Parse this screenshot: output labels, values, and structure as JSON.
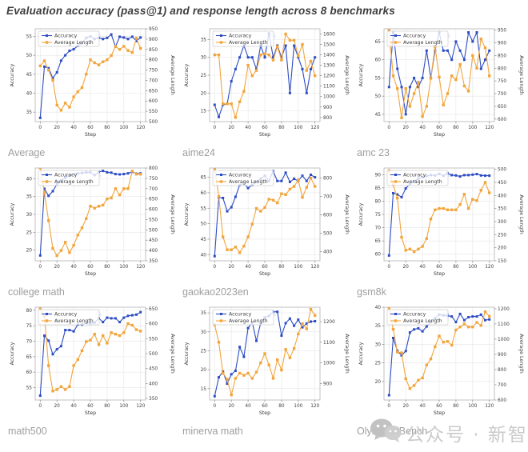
{
  "title": "Evaluation accuracy (pass@1) and response length across 8 benchmarks",
  "colors": {
    "accuracy": "#2d4cc4",
    "avg_length": "#f2a53c",
    "grid": "#e6e6e6",
    "spine": "#b3b3b3",
    "caption": "#9e9e9e",
    "watermark": "#c8c8c8"
  },
  "watermark": {
    "icon": "wechat-icon",
    "text": "公众号 · 新智元"
  },
  "chart_data": [
    {
      "type": "line",
      "name": "average",
      "caption": "Average",
      "xlabel": "Step",
      "ylabel_left": "Accuracy",
      "ylabel_right": "Average Length",
      "x_ticks": [
        0,
        20,
        40,
        60,
        80,
        100,
        120
      ],
      "x_range": [
        -6,
        126
      ],
      "yl_ticks": [
        35,
        40,
        45,
        50,
        55
      ],
      "yl_range": [
        32.5,
        57
      ],
      "yr_ticks": [
        500,
        550,
        600,
        650,
        700,
        750,
        800,
        850,
        900,
        950
      ],
      "yr_range": [
        500,
        950
      ],
      "x": [
        0,
        5,
        10,
        15,
        20,
        25,
        30,
        35,
        40,
        45,
        50,
        55,
        60,
        65,
        70,
        75,
        80,
        85,
        90,
        95,
        100,
        105,
        110,
        115,
        120
      ],
      "series": [
        {
          "name": "Accuracy",
          "axis": "left",
          "values": [
            33.5,
            47,
            46.6,
            44,
            45.5,
            48.6,
            50,
            51.2,
            51.6,
            52.5,
            53.2,
            54.6,
            55,
            54.3,
            54.6,
            54.3,
            54.6,
            55.5,
            52.3,
            54.9,
            54.7,
            54.3,
            54.9,
            53.8,
            54.7
          ]
        },
        {
          "name": "Average Length",
          "axis": "right",
          "values": [
            770,
            795,
            750,
            700,
            580,
            555,
            590,
            570,
            620,
            645,
            665,
            730,
            800,
            785,
            775,
            790,
            800,
            820,
            865,
            850,
            865,
            845,
            835,
            905,
            855
          ]
        }
      ]
    },
    {
      "type": "line",
      "name": "aime24",
      "caption": "aime24",
      "xlabel": "Step",
      "ylabel_left": "Accuracy",
      "ylabel_right": "Average Length",
      "x_ticks": [
        0,
        20,
        40,
        60,
        80,
        100,
        120
      ],
      "x_range": [
        -6,
        126
      ],
      "yl_ticks": [
        15,
        20,
        25,
        30,
        35
      ],
      "yl_range": [
        12,
        38
      ],
      "yr_ticks": [
        800,
        900,
        1000,
        1100,
        1200,
        1300,
        1400,
        1500,
        1600
      ],
      "yr_range": [
        760,
        1650
      ],
      "x": [
        0,
        5,
        10,
        15,
        20,
        25,
        30,
        35,
        40,
        45,
        50,
        55,
        60,
        65,
        70,
        75,
        80,
        85,
        90,
        95,
        100,
        105,
        110,
        115,
        120
      ],
      "series": [
        {
          "name": "Accuracy",
          "axis": "left",
          "values": [
            16.7,
            13.3,
            16.7,
            17,
            23.3,
            26.7,
            30,
            33.3,
            30,
            30,
            26.7,
            33.3,
            30,
            36.7,
            30,
            33.3,
            30,
            33.3,
            20,
            33.3,
            30,
            26.7,
            20,
            26.7,
            30
          ]
        },
        {
          "name": "Average Length",
          "axis": "right",
          "values": [
            1400,
            1400,
            930,
            930,
            930,
            800,
            950,
            1050,
            1300,
            1200,
            1250,
            1400,
            1410,
            1400,
            1350,
            1480,
            1350,
            1600,
            1540,
            1540,
            1390,
            1500,
            1250,
            1340,
            1200
          ]
        }
      ]
    },
    {
      "type": "line",
      "name": "amc23",
      "caption": "amc 23",
      "xlabel": "Step",
      "ylabel_left": "Accuracy",
      "ylabel_right": "Average Length",
      "x_ticks": [
        0,
        20,
        40,
        60,
        80,
        100,
        120
      ],
      "x_range": [
        -6,
        126
      ],
      "yl_ticks": [
        45,
        50,
        55,
        60,
        65
      ],
      "yl_range": [
        43,
        68.5
      ],
      "yr_ticks": [
        600,
        650,
        700,
        750,
        800,
        850,
        900,
        950
      ],
      "yr_range": [
        590,
        955
      ],
      "x": [
        0,
        5,
        10,
        15,
        20,
        25,
        30,
        35,
        40,
        45,
        50,
        55,
        60,
        65,
        70,
        75,
        80,
        85,
        90,
        95,
        100,
        105,
        110,
        115,
        120
      ],
      "series": [
        {
          "name": "Accuracy",
          "axis": "left",
          "values": [
            52.5,
            67.5,
            57.5,
            52.5,
            45,
            52.5,
            55,
            52.5,
            55,
            62.5,
            55,
            62.5,
            67.5,
            62.5,
            62.5,
            60,
            65,
            62.5,
            60,
            67.5,
            65,
            67.5,
            57.5,
            60,
            62.5
          ]
        },
        {
          "name": "Average Length",
          "axis": "right",
          "values": [
            950,
            770,
            720,
            605,
            720,
            650,
            700,
            745,
            610,
            650,
            760,
            885,
            765,
            655,
            700,
            770,
            755,
            815,
            730,
            710,
            850,
            800,
            915,
            880,
            770
          ]
        }
      ]
    },
    {
      "type": "line",
      "name": "college-math",
      "caption": "college math",
      "xlabel": "Step",
      "ylabel_left": "Accuracy",
      "ylabel_right": "Average Length",
      "x_ticks": [
        0,
        20,
        40,
        60,
        80,
        100,
        120
      ],
      "x_range": [
        -6,
        126
      ],
      "yl_ticks": [
        20,
        25,
        30,
        35,
        40
      ],
      "yl_range": [
        17,
        43
      ],
      "yr_ticks": [
        350,
        400,
        450,
        500,
        550,
        600,
        650,
        700,
        750,
        800
      ],
      "yr_range": [
        350,
        800
      ],
      "x": [
        0,
        5,
        10,
        15,
        20,
        25,
        30,
        35,
        40,
        45,
        50,
        55,
        60,
        65,
        70,
        75,
        80,
        85,
        90,
        95,
        100,
        105,
        110,
        115,
        120
      ],
      "series": [
        {
          "name": "Accuracy",
          "axis": "left",
          "values": [
            18.5,
            37.2,
            35.2,
            36.5,
            38.5,
            39.5,
            40.3,
            40.8,
            41.2,
            41.5,
            41.6,
            41.8,
            41.8,
            41,
            41.9,
            42.2,
            41.8,
            41.7,
            41.3,
            41.2,
            41.3,
            41.5,
            41.9,
            41.4,
            41.5
          ]
        },
        {
          "name": "Average Length",
          "axis": "right",
          "values": [
            800,
            680,
            545,
            410,
            375,
            400,
            440,
            390,
            425,
            475,
            510,
            555,
            615,
            605,
            615,
            620,
            650,
            655,
            700,
            670,
            700,
            700,
            785,
            770,
            770
          ]
        }
      ]
    },
    {
      "type": "line",
      "name": "gaokao2023en",
      "caption": "gaokao2023en",
      "xlabel": "Step",
      "ylabel_left": "Accuracy",
      "ylabel_right": "Average Length",
      "x_ticks": [
        0,
        20,
        40,
        60,
        80,
        100,
        120
      ],
      "x_range": [
        -6,
        126
      ],
      "yl_ticks": [
        40,
        45,
        50,
        55,
        60,
        65
      ],
      "yl_range": [
        38,
        68
      ],
      "yr_ticks": [
        400,
        500,
        600,
        700,
        800
      ],
      "yr_range": [
        350,
        855
      ],
      "x": [
        0,
        5,
        10,
        15,
        20,
        25,
        30,
        35,
        40,
        45,
        50,
        55,
        60,
        65,
        70,
        75,
        80,
        85,
        90,
        95,
        100,
        105,
        110,
        115,
        120
      ],
      "series": [
        {
          "name": "Accuracy",
          "axis": "left",
          "values": [
            39.5,
            58.5,
            58.3,
            54,
            55.3,
            58.7,
            62.5,
            63,
            61.5,
            62.5,
            63.5,
            64.5,
            65.5,
            63.8,
            67,
            63.8,
            63.8,
            66.5,
            63.5,
            64.5,
            63.8,
            65.5,
            63.8,
            65.8,
            65
          ]
        },
        {
          "name": "Average Length",
          "axis": "right",
          "values": [
            850,
            700,
            480,
            410,
            410,
            425,
            395,
            430,
            480,
            550,
            635,
            620,
            640,
            685,
            680,
            665,
            715,
            710,
            740,
            755,
            790,
            695,
            750,
            800,
            755
          ]
        }
      ]
    },
    {
      "type": "line",
      "name": "gsm8k",
      "caption": "gsm8k",
      "xlabel": "Step",
      "ylabel_left": "Accuracy",
      "ylabel_right": "Average Length",
      "x_ticks": [
        0,
        20,
        40,
        60,
        80,
        100,
        120
      ],
      "x_range": [
        -6,
        126
      ],
      "yl_ticks": [
        60,
        65,
        70,
        75,
        80,
        85,
        90
      ],
      "yl_range": [
        57.5,
        92.5
      ],
      "yr_ticks": [
        150,
        200,
        250,
        300,
        350,
        400,
        450,
        500
      ],
      "yr_range": [
        150,
        505
      ],
      "x": [
        0,
        5,
        10,
        15,
        20,
        25,
        30,
        35,
        40,
        45,
        50,
        55,
        60,
        65,
        70,
        75,
        80,
        85,
        90,
        95,
        100,
        105,
        110,
        115,
        120
      ],
      "series": [
        {
          "name": "Accuracy",
          "axis": "left",
          "values": [
            59.5,
            83,
            82.5,
            81.5,
            84.8,
            86.5,
            87.5,
            88.5,
            89,
            89.5,
            89.8,
            89.7,
            90.3,
            89.5,
            90.5,
            89.8,
            89.7,
            89.3,
            89.8,
            89.8,
            90,
            90.2,
            89.7,
            89.6,
            89.6
          ]
        },
        {
          "name": "Average Length",
          "axis": "right",
          "values": [
            495,
            440,
            390,
            240,
            190,
            195,
            185,
            195,
            205,
            235,
            310,
            345,
            350,
            350,
            345,
            345,
            345,
            365,
            405,
            350,
            385,
            380,
            420,
            450,
            410
          ]
        }
      ]
    },
    {
      "type": "line",
      "name": "math500",
      "caption": "math500",
      "xlabel": "Step",
      "ylabel_left": "Accuracy",
      "ylabel_right": "Average Length",
      "x_ticks": [
        0,
        20,
        40,
        60,
        80,
        100,
        120
      ],
      "x_range": [
        -6,
        126
      ],
      "yl_ticks": [
        55,
        60,
        65,
        70,
        75,
        80
      ],
      "yl_range": [
        51,
        81
      ],
      "yr_ticks": [
        350,
        400,
        450,
        500,
        550,
        600,
        650
      ],
      "yr_range": [
        345,
        655
      ],
      "x": [
        0,
        5,
        10,
        15,
        20,
        25,
        30,
        35,
        40,
        45,
        50,
        55,
        60,
        65,
        70,
        75,
        80,
        85,
        90,
        95,
        100,
        105,
        110,
        115,
        120
      ],
      "series": [
        {
          "name": "Accuracy",
          "axis": "left",
          "values": [
            52.4,
            71.8,
            70.2,
            65.8,
            67.4,
            68.4,
            73.6,
            73.6,
            73.2,
            75.4,
            75.4,
            76,
            75.8,
            76,
            77.4,
            76.2,
            77.6,
            77.4,
            77.4,
            76.2,
            77.6,
            78.2,
            78.4,
            78.6,
            79.4
          ]
        },
        {
          "name": "Average Length",
          "axis": "right",
          "values": [
            650,
            625,
            460,
            375,
            380,
            390,
            380,
            390,
            460,
            480,
            510,
            540,
            545,
            565,
            530,
            560,
            535,
            570,
            565,
            560,
            570,
            600,
            595,
            580,
            575
          ]
        }
      ]
    },
    {
      "type": "line",
      "name": "minerva-math",
      "caption": "minerva math",
      "xlabel": "Step",
      "ylabel_left": "Accuracy",
      "ylabel_right": "Average Length",
      "x_ticks": [
        0,
        20,
        40,
        60,
        80,
        100,
        120
      ],
      "x_range": [
        -6,
        126
      ],
      "yl_ticks": [
        15,
        20,
        25,
        30,
        35
      ],
      "yl_range": [
        12,
        36.5
      ],
      "yr_ticks": [
        900,
        1000,
        1100,
        1200
      ],
      "yr_range": [
        820,
        1270
      ],
      "x": [
        0,
        5,
        10,
        15,
        20,
        25,
        30,
        35,
        40,
        45,
        50,
        55,
        60,
        65,
        70,
        75,
        80,
        85,
        90,
        95,
        100,
        105,
        110,
        115,
        120
      ],
      "series": [
        {
          "name": "Accuracy",
          "axis": "left",
          "values": [
            13,
            18,
            19.5,
            16.3,
            18.8,
            19.7,
            26,
            23.4,
            31,
            32.5,
            27.6,
            32.3,
            33.8,
            34.2,
            35.3,
            35.3,
            29,
            32.3,
            33.5,
            31.6,
            33.2,
            31.2,
            32.2,
            32.7,
            32.8
          ]
        },
        {
          "name": "Average Length",
          "axis": "right",
          "values": [
            1185,
            1100,
            950,
            920,
            845,
            925,
            950,
            940,
            950,
            925,
            955,
            1000,
            1045,
            990,
            925,
            1015,
            965,
            1065,
            1025,
            1070,
            1140,
            1190,
            1165,
            1260,
            1230
          ]
        }
      ]
    },
    {
      "type": "line",
      "name": "olympiadbench",
      "caption": "OlympiadBench",
      "xlabel": "Step",
      "ylabel_left": "Accuracy",
      "ylabel_right": "Average Length",
      "x_ticks": [
        0,
        20,
        40,
        60,
        80,
        100,
        120
      ],
      "x_range": [
        -6,
        126
      ],
      "yl_ticks": [
        20,
        25,
        30,
        35,
        40
      ],
      "yl_range": [
        15,
        40
      ],
      "yr_ticks": [
        600,
        700,
        800,
        900,
        1000,
        1100,
        1200
      ],
      "yr_range": [
        600,
        1210
      ],
      "x": [
        0,
        5,
        10,
        15,
        20,
        25,
        30,
        35,
        40,
        45,
        50,
        55,
        60,
        65,
        70,
        75,
        80,
        85,
        90,
        95,
        100,
        105,
        110,
        115,
        120
      ],
      "series": [
        {
          "name": "Accuracy",
          "axis": "left",
          "values": [
            16.3,
            31.7,
            28.3,
            27,
            28.2,
            33.2,
            34,
            34.3,
            33.5,
            34.8,
            36,
            37,
            38,
            37.8,
            37.7,
            37.5,
            36,
            38.2,
            36.5,
            37.3,
            37.5,
            37.5,
            38,
            36.5,
            36.7
          ]
        },
        {
          "name": "Average Length",
          "axis": "right",
          "values": [
            1200,
            1065,
            915,
            910,
            740,
            675,
            695,
            730,
            745,
            830,
            870,
            950,
            1020,
            980,
            985,
            960,
            1060,
            1080,
            1100,
            1080,
            1080,
            1110,
            1090,
            1180,
            1150
          ]
        }
      ]
    }
  ]
}
